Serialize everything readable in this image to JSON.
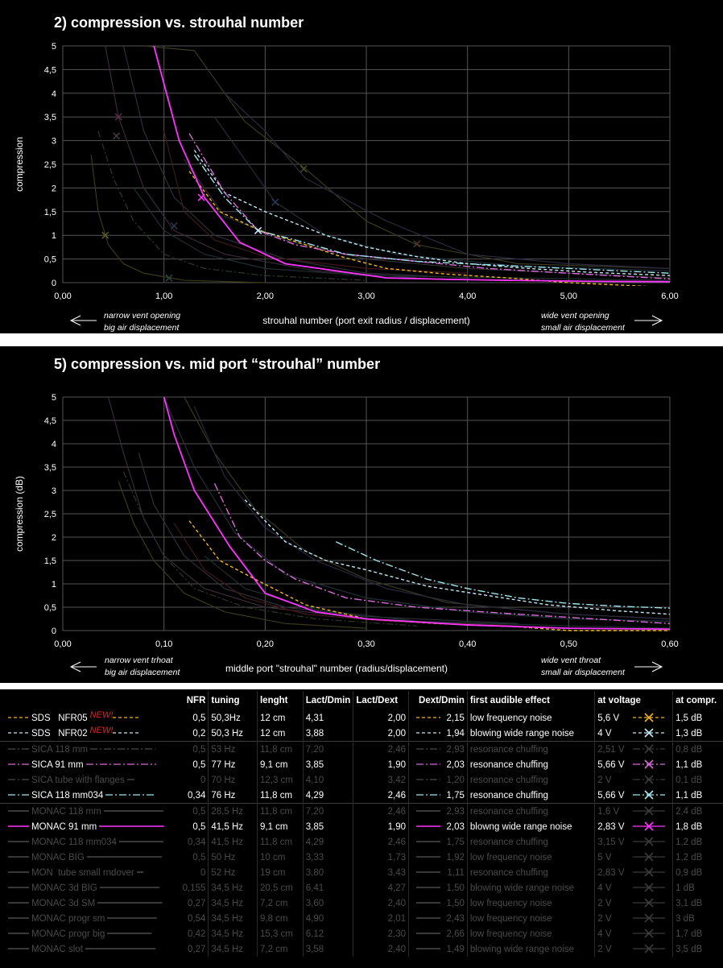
{
  "colors": {
    "sds05": "#f2b41a",
    "sds02": "#bfe8f4",
    "sica": "#d86ad8",
    "monac": "#ff33ff",
    "grid": "#555555",
    "dim": "#4a4a4a"
  },
  "panel1": {
    "title": "2) compression vs. strouhal number",
    "ylabel": "compression",
    "xlabel": "strouhal number (port exit radius / displacement)",
    "left_note": [
      "narrow vent opening",
      "big air displacement"
    ],
    "right_note": [
      "wide vent opening",
      "small air displacement"
    ],
    "xticks": [
      "0,00",
      "1,00",
      "2,00",
      "3,00",
      "4,00",
      "5,00",
      "6,00"
    ],
    "yticks": [
      "0",
      "0,5",
      "1",
      "1,5",
      "2",
      "2,5",
      "3",
      "3,5",
      "4",
      "4,5",
      "5"
    ]
  },
  "panel2": {
    "title": "5) compression vs. mid port “strouhal” number",
    "ylabel": "compression (dB)",
    "xlabel": "middle port \"strouhal\" number (radius/displacement)",
    "left_note": [
      "narrow vent trhoat",
      "big air displacement"
    ],
    "right_note": [
      "wide vent throat",
      "small air displacement"
    ],
    "xticks": [
      "0,00",
      "0,10",
      "0,20",
      "0,30",
      "0,40",
      "0,50",
      "0,60"
    ],
    "yticks": [
      "0",
      "0,5",
      "1",
      "1,5",
      "2",
      "2,5",
      "3",
      "3,5",
      "4",
      "4,5",
      "5"
    ]
  },
  "chart_data": [
    {
      "type": "line",
      "title": "2) compression vs. strouhal number",
      "xlabel": "strouhal number (port exit radius / displacement)",
      "ylabel": "compression",
      "xlim": [
        0,
        6
      ],
      "ylim": [
        0,
        5
      ],
      "grid": true,
      "series": [
        {
          "name": "SDS NFR05",
          "color": "#f2b41a",
          "dash": "4,3",
          "x": [
            1.25,
            1.55,
            1.95,
            2.4,
            2.75,
            3.2,
            3.8,
            4.4,
            5.0,
            6.0
          ],
          "y": [
            2.35,
            1.5,
            1.1,
            0.8,
            0.55,
            0.3,
            0.18,
            0.1,
            0.0,
            -0.1
          ]
        },
        {
          "name": "SDS NFR02",
          "color": "#bfe8f4",
          "dash": "4,3",
          "x": [
            1.3,
            1.6,
            2.0,
            2.6,
            3.0,
            3.5,
            4.0,
            4.6,
            5.2,
            6.0
          ],
          "y": [
            2.8,
            1.9,
            1.5,
            1.0,
            0.75,
            0.55,
            0.4,
            0.3,
            0.22,
            0.15
          ]
        },
        {
          "name": "SICA 91 mm",
          "color": "#d86ad8",
          "dash": "9,3,2,3",
          "x": [
            1.25,
            1.6,
            1.93,
            2.3,
            2.8,
            3.5,
            4.2,
            5.0,
            6.0
          ],
          "y": [
            3.15,
            1.9,
            1.1,
            0.8,
            0.6,
            0.45,
            0.3,
            0.2,
            0.08
          ]
        },
        {
          "name": "SICA 118 mm034",
          "color": "#9fe6ee",
          "dash": "9,3,2,3",
          "x": [
            1.3,
            1.6,
            1.93,
            2.3,
            2.8,
            3.5,
            4.2,
            5.0,
            6.0
          ],
          "y": [
            2.7,
            1.8,
            1.1,
            0.9,
            0.6,
            0.45,
            0.38,
            0.3,
            0.2
          ]
        },
        {
          "name": "MONAC 91 mm",
          "color": "#ff33ff",
          "dash": "",
          "x": [
            0.9,
            1.15,
            1.4,
            1.75,
            2.2,
            2.7,
            3.2,
            3.8,
            4.4,
            5.2,
            6.0
          ],
          "y": [
            5.0,
            3.0,
            1.8,
            0.85,
            0.4,
            0.25,
            0.1,
            0.07,
            0.05,
            0.03,
            0.02
          ]
        }
      ]
    },
    {
      "type": "line",
      "title": "5) compression vs. mid port “strouhal” number",
      "xlabel": "middle port \"strouhal\" number (radius/displacement)",
      "ylabel": "compression (dB)",
      "xlim": [
        0,
        0.6
      ],
      "ylim": [
        0,
        5
      ],
      "grid": true,
      "series": [
        {
          "name": "SDS NFR05",
          "color": "#f2b41a",
          "dash": "4,3",
          "x": [
            0.125,
            0.155,
            0.19,
            0.24,
            0.3,
            0.37,
            0.45,
            0.5,
            0.6
          ],
          "y": [
            2.35,
            1.5,
            1.1,
            0.55,
            0.25,
            0.15,
            0.08,
            0.0,
            0.0
          ]
        },
        {
          "name": "SDS NFR02",
          "color": "#bfe8f4",
          "dash": "4,3",
          "x": [
            0.18,
            0.22,
            0.26,
            0.3,
            0.36,
            0.42,
            0.48,
            0.55,
            0.6
          ],
          "y": [
            2.8,
            1.9,
            1.5,
            1.3,
            0.95,
            0.75,
            0.55,
            0.42,
            0.35
          ]
        },
        {
          "name": "SICA 91 mm",
          "color": "#d86ad8",
          "dash": "9,3,2,3",
          "x": [
            0.15,
            0.175,
            0.2,
            0.23,
            0.28,
            0.35,
            0.45,
            0.6
          ],
          "y": [
            3.15,
            2.0,
            1.5,
            1.1,
            0.7,
            0.5,
            0.35,
            0.15
          ]
        },
        {
          "name": "SICA 118 mm034",
          "color": "#9fe6ee",
          "dash": "9,3,2,3",
          "x": [
            0.27,
            0.31,
            0.36,
            0.4,
            0.45,
            0.5,
            0.55,
            0.6
          ],
          "y": [
            1.9,
            1.5,
            1.1,
            0.9,
            0.7,
            0.58,
            0.52,
            0.48
          ]
        },
        {
          "name": "MONAC 91 mm",
          "color": "#ff33ff",
          "dash": "",
          "x": [
            0.1,
            0.11,
            0.13,
            0.165,
            0.2,
            0.25,
            0.3,
            0.4,
            0.5,
            0.6
          ],
          "y": [
            5.0,
            4.2,
            3.0,
            1.8,
            0.8,
            0.4,
            0.25,
            0.12,
            0.05,
            0.03
          ]
        }
      ]
    }
  ],
  "table": {
    "headers": [
      "NFR",
      "tuning",
      "lenght",
      "Lact/Dmin",
      "Lact/Dext",
      "Dext/Dmin",
      "first audible effect",
      "at voltage",
      "at compr."
    ],
    "new_tag": "NEW!",
    "rows": [
      {
        "name": "SDS   NFR05",
        "nfr": "0,5",
        "tuning": "50,3Hz",
        "len": "12 cm",
        "la": "4,31",
        "le": "2,00",
        "de": "2,15",
        "effect": "low frequency noise",
        "volt": "5,6 V",
        "compr": "1,5 dB",
        "dim": false,
        "new": true,
        "color": "#f2b41a",
        "dash": "4,3"
      },
      {
        "name": "SDS   NFR02",
        "nfr": "0,2",
        "tuning": "50,3 Hz",
        "len": "12 cm",
        "la": "3,88",
        "le": "2,00",
        "de": "1,94",
        "effect": "blowing wide range noise",
        "volt": "4 V",
        "compr": "1,3 dB",
        "dim": false,
        "new": true,
        "color": "#bfe8f4",
        "dash": "4,3"
      },
      {
        "name": "SICA 118 mm",
        "nfr": "0,5",
        "tuning": "53 Hz",
        "len": "11,8 cm",
        "la": "7,20",
        "le": "2,46",
        "de": "2,93",
        "effect": "resonance chuffing",
        "volt": "2,51 V",
        "compr": "0,8 dB",
        "dim": true,
        "new": false,
        "color": "#4a4a4a",
        "dash": "9,3,2,3"
      },
      {
        "name": "SICA 91 mm",
        "nfr": "0,5",
        "tuning": "77 Hz",
        "len": "9,1 cm",
        "la": "3,85",
        "le": "1,90",
        "de": "2,03",
        "effect": "resonance chuffing",
        "volt": "5,66 V",
        "compr": "1,1 dB",
        "dim": false,
        "new": false,
        "color": "#d86ad8",
        "dash": "9,3,2,3"
      },
      {
        "name": "SICA tube with flanges",
        "nfr": "0",
        "tuning": "70 Hz",
        "len": "12,3 cm",
        "la": "4,10",
        "le": "3,42",
        "de": "1,20",
        "effect": "resonance chuffing",
        "volt": "2 V",
        "compr": "0,1 dB",
        "dim": true,
        "new": false,
        "color": "#4a4a4a",
        "dash": "9,3,2,3"
      },
      {
        "name": "SICA 118 mm034",
        "nfr": "0,34",
        "tuning": "76 Hz",
        "len": "11,8 cm",
        "la": "4,29",
        "le": "2,46",
        "de": "1,75",
        "effect": "resonance chuffing",
        "volt": "5,66 V",
        "compr": "1,1 dB",
        "dim": false,
        "new": false,
        "color": "#9fe6ee",
        "dash": "9,3,2,3"
      },
      {
        "name": "MONAC 118 mm",
        "nfr": "0,5",
        "tuning": "28,5 Hz",
        "len": "11,8 cm",
        "la": "7,20",
        "le": "2,46",
        "de": "2,93",
        "effect": "resonance chuffing",
        "volt": "1,6 V",
        "compr": "2,4 dB",
        "dim": true,
        "new": false,
        "color": "#4a4a4a",
        "dash": ""
      },
      {
        "name": "MONAC 91 mm",
        "nfr": "0,5",
        "tuning": "41,5 Hz",
        "len": "9,1 cm",
        "la": "3,85",
        "le": "1,90",
        "de": "2,03",
        "effect": "blowng wide range noise",
        "volt": "2,83 V",
        "compr": "1,8 dB",
        "dim": false,
        "new": false,
        "color": "#ff33ff",
        "dash": ""
      },
      {
        "name": "MONAC 118 mm034",
        "nfr": "0,34",
        "tuning": "41,5 Hz",
        "len": "11,8 cm",
        "la": "4,29",
        "le": "2,46",
        "de": "1,75",
        "effect": "resonance chuffing",
        "volt": "3,15 V",
        "compr": "1,2 dB",
        "dim": true,
        "new": false,
        "color": "#4a4a4a",
        "dash": ""
      },
      {
        "name": "MONAC BIG",
        "nfr": "0,5",
        "tuning": "50 Hz",
        "len": "10 cm",
        "la": "3,33",
        "le": "1,73",
        "de": "1,92",
        "effect": "low frequency noise",
        "volt": "5 V",
        "compr": "1,2 dB",
        "dim": true,
        "new": false,
        "color": "#4a4a4a",
        "dash": ""
      },
      {
        "name": "MON  tube small rndover",
        "nfr": "0",
        "tuning": "52 Hz",
        "len": "19 cm",
        "la": "3,80",
        "le": "3,43",
        "de": "1,11",
        "effect": "resonance chuffing",
        "volt": "2,83 V",
        "compr": "0,9 dB",
        "dim": true,
        "new": false,
        "color": "#4a4a4a",
        "dash": ""
      },
      {
        "name": "MONAC 3d BIG",
        "nfr": "0,155",
        "tuning": "34,5 Hz",
        "len": "20,5 cm",
        "la": "6,41",
        "le": "4,27",
        "de": "1,50",
        "effect": "blowing wide range noise",
        "volt": "4 V",
        "compr": "1 dB",
        "dim": true,
        "new": false,
        "color": "#4a4a4a",
        "dash": ""
      },
      {
        "name": "MONAC 3d SM",
        "nfr": "0,27",
        "tuning": "34,5 Hz",
        "len": "7,2 cm",
        "la": "3,60",
        "le": "2,40",
        "de": "1,50",
        "effect": "low frequency noise",
        "volt": "2 V",
        "compr": "3,1 dB",
        "dim": true,
        "new": false,
        "color": "#4a4a4a",
        "dash": ""
      },
      {
        "name": "MONAC progr sm",
        "nfr": "0,54",
        "tuning": "34,5 Hz",
        "len": "9,8 cm",
        "la": "4,90",
        "le": "2,01",
        "de": "2,43",
        "effect": "low frequency noise",
        "volt": "2 V",
        "compr": "3 dB",
        "dim": true,
        "new": false,
        "color": "#4a4a4a",
        "dash": ""
      },
      {
        "name": "MONAC progr big",
        "nfr": "0,42",
        "tuning": "34,5 Hz",
        "len": "15,3 cm",
        "la": "6,12",
        "le": "2,30",
        "de": "2,66",
        "effect": "low frequency noise",
        "volt": "4 V",
        "compr": "1,7 dB",
        "dim": true,
        "new": false,
        "color": "#4a4a4a",
        "dash": ""
      },
      {
        "name": "MONAC slot",
        "nfr": "0,27",
        "tuning": "34,5 Hz",
        "len": "7,2 cm",
        "la": "3,58",
        "le": "2,40",
        "de": "1,49",
        "effect": "blowing wide range noise",
        "volt": "2 V",
        "compr": "3,5 dB",
        "dim": true,
        "new": false,
        "color": "#4a4a4a",
        "dash": ""
      }
    ]
  }
}
